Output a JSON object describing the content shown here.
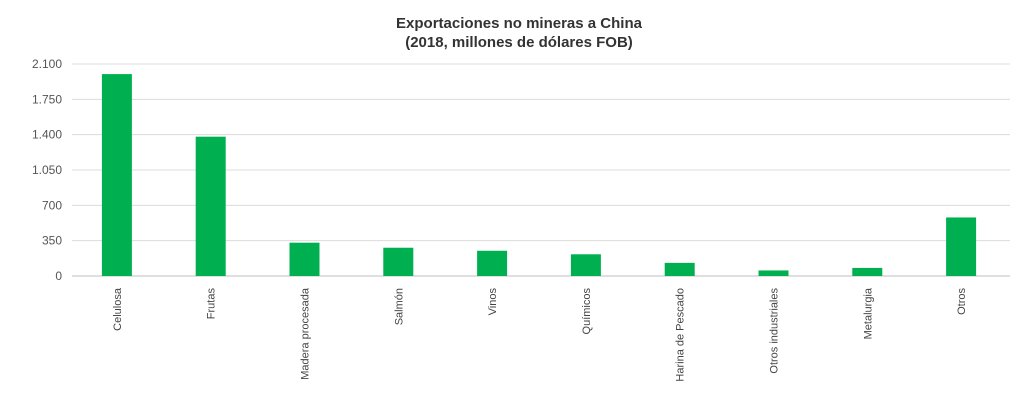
{
  "chart_data": {
    "type": "bar",
    "title": "Exportaciones no mineras a China",
    "subtitle": "(2018, millones de dólares FOB)",
    "xlabel": "",
    "ylabel": "",
    "categories": [
      "Celulosa",
      "Frutas",
      "Madera procesada",
      "Salmón",
      "Vinos",
      "Químicos",
      "Harina de Pescado",
      "Otros industriales",
      "Metalurgia",
      "Otros"
    ],
    "values": [
      2000,
      1380,
      330,
      280,
      250,
      215,
      130,
      55,
      80,
      580
    ],
    "ylim": [
      0,
      2100
    ],
    "yticks": [
      0,
      350,
      700,
      1050,
      1400,
      1750,
      2100
    ],
    "ytick_labels": [
      "0",
      "350",
      "700",
      "1.050",
      "1.400",
      "1.750",
      "2.100"
    ],
    "grid": true,
    "legend": "none",
    "bar_color": "#00b050"
  }
}
